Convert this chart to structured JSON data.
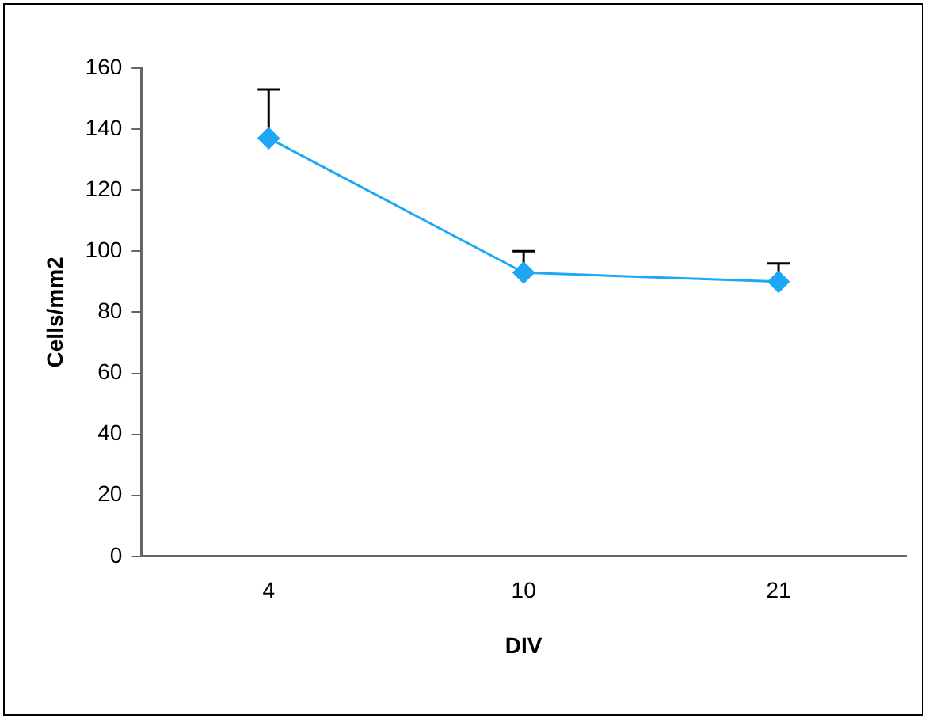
{
  "chart_data": {
    "type": "line",
    "xlabel": "DIV",
    "ylabel": "Cells/mm2",
    "categories": [
      "4",
      "10",
      "21"
    ],
    "series": [
      {
        "color": "#1ea7f5",
        "values": [
          137,
          93,
          90
        ],
        "errors": [
          [
            137,
            153
          ],
          [
            93,
            100
          ],
          [
            90,
            96
          ]
        ]
      }
    ],
    "ylim": [
      0,
      160
    ],
    "yticks": [
      0,
      20,
      40,
      60,
      80,
      100,
      120,
      140,
      160
    ],
    "grid": false,
    "legend": false,
    "marker": "diamond",
    "line_style": "solid"
  }
}
